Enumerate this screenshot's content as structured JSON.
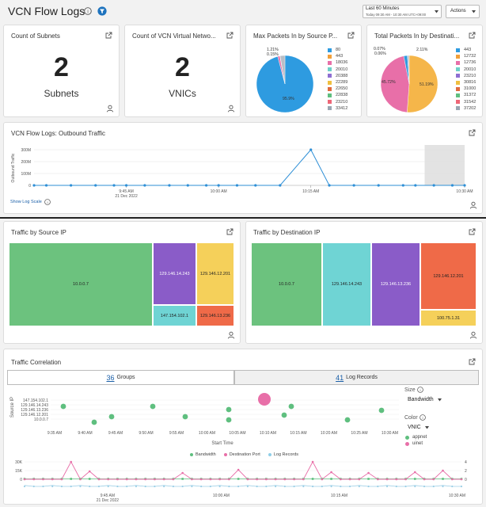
{
  "header": {
    "title": "VCN Flow Logs",
    "time_range_label": "Last 60 Minutes",
    "time_range_detail": "Today 09:30 AM - 10:30 AM UTC+09:00",
    "actions_label": "Actions"
  },
  "tiles": {
    "subnets": {
      "title": "Count of Subnets",
      "value": "2",
      "unit": "Subnets"
    },
    "vnics": {
      "title": "Count of VCN Virtual Netwo...",
      "value": "2",
      "unit": "VNICs"
    },
    "max_packets": {
      "title": "Max Packets In by Source P...",
      "legend": [
        "80",
        "443",
        "18036",
        "20010",
        "20388",
        "22289",
        "22650",
        "22838",
        "23210",
        "33412"
      ],
      "legend_colors": [
        "#2e9be0",
        "#f2a03a",
        "#e86fa8",
        "#6dd0c8",
        "#8e6fd2",
        "#f0c040",
        "#e06a3e",
        "#5fbf7f",
        "#ee6677",
        "#9aa6b2"
      ],
      "slice_labels": [
        "1.21%",
        "0.15%",
        "95.9%"
      ],
      "slice_values": [
        95.9,
        1.21,
        0.15,
        2.74
      ]
    },
    "total_packets": {
      "title": "Total Packets In by Destinati...",
      "legend": [
        "443",
        "12732",
        "12736",
        "20010",
        "23210",
        "30816",
        "31000",
        "31372",
        "31542",
        "37202"
      ],
      "legend_colors": [
        "#2e9be0",
        "#f2a03a",
        "#e86fa8",
        "#6dd0c8",
        "#8e6fd2",
        "#f0c040",
        "#e06a3e",
        "#5fbf7f",
        "#ee6677",
        "#9aa6b2"
      ],
      "slice_labels": [
        "0.07%",
        "0.06%",
        "2.11%",
        "45.72%",
        "51.19%"
      ],
      "slice_values": [
        51.19,
        45.72,
        2.11,
        0.07,
        0.06,
        0.85
      ]
    }
  },
  "outbound": {
    "title": "VCN Flow Logs: Outbound Traffic",
    "ylabel": "Outbound Traffic",
    "show_log_scale": "Show Log Scale",
    "y_ticks": [
      "300M",
      "200M",
      "100M",
      "0"
    ],
    "x_ticks": [
      "9:45 AM",
      "10:00 AM",
      "10:15 AM",
      "10:30 AM"
    ],
    "date_label": "21 Dec 2022"
  },
  "chart_data": {
    "type": "line",
    "title": "VCN Flow Logs: Outbound Traffic",
    "ylabel": "Outbound Traffic",
    "ylim": [
      0,
      300
    ],
    "unit": "M",
    "points_x_minutes": [
      0,
      2,
      6,
      10,
      13,
      15,
      18,
      22,
      25,
      28,
      30,
      33,
      36,
      40,
      45,
      48,
      52,
      56,
      60,
      62,
      65,
      68,
      70
    ],
    "points_y": [
      0,
      0,
      0,
      0,
      0,
      0,
      0,
      0,
      0,
      0,
      0,
      0,
      0,
      0,
      300,
      0,
      0,
      0,
      0,
      0,
      0,
      0,
      0
    ]
  },
  "source_ip": {
    "title": "Traffic by Source IP",
    "cells": [
      "10.0.0.7",
      "129.146.14.243",
      "129.146.12.201",
      "147.154.102.1",
      "129.146.13.236"
    ]
  },
  "dest_ip": {
    "title": "Traffic by Destination IP",
    "cells": [
      "10.0.0.7",
      "129.146.14.243",
      "129.146.13.236",
      "129.146.12.201",
      "100.75.1.31"
    ]
  },
  "correlation": {
    "title": "Traffic Correlation",
    "groups_count": "36",
    "groups_label": "Groups",
    "records_count": "41",
    "records_label": "Log Records",
    "ylabel": "Source IP",
    "xlabel": "Start Time",
    "y_categories": [
      "147.154.102.1",
      "129.146.14.243",
      "129.146.13.236",
      "129.146.12.201",
      "10.0.0.7"
    ],
    "x_ticks": [
      "9:35 AM",
      "9:40 AM",
      "9:45 AM",
      "9:50 AM",
      "9:55 AM",
      "10:00 AM",
      "10:05 AM",
      "10:10 AM",
      "10:15 AM",
      "10:20 AM",
      "10:25 AM",
      "10:30 AM"
    ],
    "size_label": "Size",
    "size_value": "Bandwidth",
    "color_label": "Color",
    "color_value": "VNIC",
    "color_legend": [
      "appnet",
      "uinet"
    ],
    "color_legend_colors": [
      "#5fbf7f",
      "#e86fa8"
    ],
    "series_legend": [
      "Bandwidth",
      "Destination Port",
      "Log Records"
    ],
    "series_colors": [
      "#5fbf7f",
      "#e86fa8",
      "#8fcfe8"
    ],
    "bottom_y_ticks": [
      "30K",
      "15K",
      "0"
    ],
    "bottom_y_right": [
      "4",
      "2",
      "0"
    ],
    "bottom_x_ticks": [
      "9:45 AM",
      "10:00 AM",
      "10:15 AM",
      "10:30 AM"
    ],
    "bottom_date": "21 Dec 2022"
  }
}
